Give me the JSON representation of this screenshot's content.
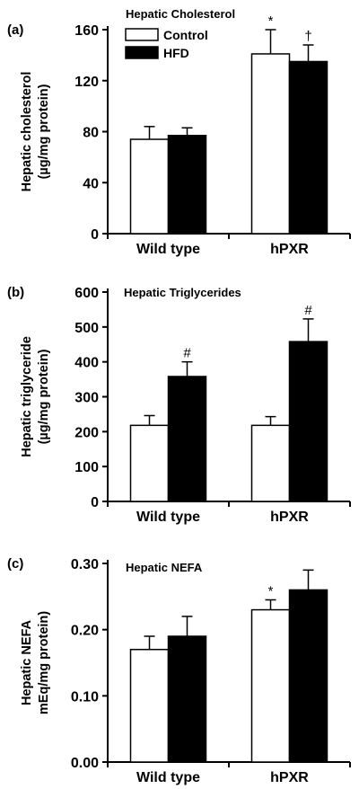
{
  "figure": {
    "legend": [
      {
        "key": "control",
        "label": "Control",
        "fill": "#ffffff"
      },
      {
        "key": "hfd",
        "label": "HFD",
        "fill": "#000000"
      }
    ]
  },
  "chart_data": [
    {
      "type": "bar",
      "panel_label": "(a)",
      "title": "Hepatic Cholesterol",
      "ylabel_lines": [
        "Hepatic cholesterol",
        "(µg/mg protein)"
      ],
      "xlabel": "",
      "categories": [
        "Wild type",
        "hPXR"
      ],
      "ylim": [
        0,
        160
      ],
      "yticks": [
        0,
        40,
        80,
        120,
        160
      ],
      "ytick_labels": [
        "0",
        "40",
        "80",
        "120",
        "160"
      ],
      "series": [
        {
          "name": "Control",
          "fill": "#ffffff",
          "values": [
            74,
            141
          ],
          "errors": [
            10,
            19
          ],
          "annotations": [
            "",
            "*"
          ]
        },
        {
          "name": "HFD",
          "fill": "#000000",
          "values": [
            77,
            135
          ],
          "errors": [
            6,
            13
          ],
          "annotations": [
            "",
            "†"
          ]
        }
      ],
      "legend_position": "top-left"
    },
    {
      "type": "bar",
      "panel_label": "(b)",
      "title": "Hepatic Triglycerides",
      "ylabel_lines": [
        "Hepatic triglyceride",
        "(µg/mg protein)"
      ],
      "xlabel": "",
      "categories": [
        "Wild type",
        "hPXR"
      ],
      "ylim": [
        0,
        600
      ],
      "yticks": [
        0,
        100,
        200,
        300,
        400,
        500,
        600
      ],
      "ytick_labels": [
        "0",
        "100",
        "200",
        "300",
        "400",
        "500",
        "600"
      ],
      "series": [
        {
          "name": "Control",
          "fill": "#ffffff",
          "values": [
            218,
            218
          ],
          "errors": [
            28,
            25
          ],
          "annotations": [
            "",
            ""
          ]
        },
        {
          "name": "HFD",
          "fill": "#000000",
          "values": [
            358,
            458
          ],
          "errors": [
            42,
            65
          ],
          "annotations": [
            "#",
            "#"
          ]
        }
      ]
    },
    {
      "type": "bar",
      "panel_label": "(c)",
      "title": "Hepatic NEFA",
      "ylabel_lines": [
        "Hepatic NEFA",
        "mEq/mg protein)"
      ],
      "xlabel": "",
      "categories": [
        "Wild type",
        "hPXR"
      ],
      "ylim": [
        0,
        0.3
      ],
      "yticks": [
        0,
        0.1,
        0.2,
        0.3
      ],
      "ytick_labels": [
        "0.00",
        "0.10",
        "0.20",
        "0.30"
      ],
      "series": [
        {
          "name": "Control",
          "fill": "#ffffff",
          "values": [
            0.17,
            0.23
          ],
          "errors": [
            0.02,
            0.015
          ],
          "annotations": [
            "",
            "*"
          ]
        },
        {
          "name": "HFD",
          "fill": "#000000",
          "values": [
            0.19,
            0.26
          ],
          "errors": [
            0.03,
            0.03
          ],
          "annotations": [
            "",
            ""
          ]
        }
      ]
    }
  ]
}
